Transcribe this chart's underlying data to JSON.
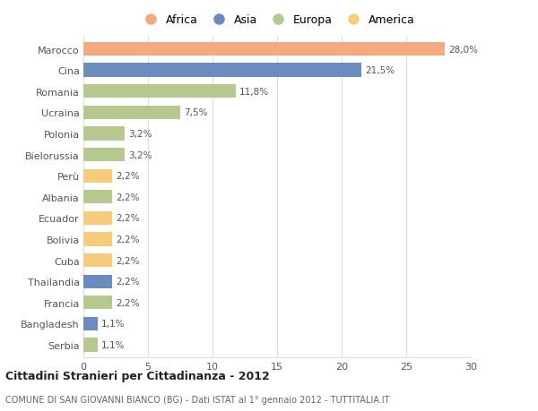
{
  "categories": [
    "Marocco",
    "Cina",
    "Romania",
    "Ucraina",
    "Polonia",
    "Bielorussia",
    "Perù",
    "Albania",
    "Ecuador",
    "Bolivia",
    "Cuba",
    "Thailandia",
    "Francia",
    "Bangladesh",
    "Serbia"
  ],
  "values": [
    28.0,
    21.5,
    11.8,
    7.5,
    3.2,
    3.2,
    2.2,
    2.2,
    2.2,
    2.2,
    2.2,
    2.2,
    2.2,
    1.1,
    1.1
  ],
  "labels": [
    "28,0%",
    "21,5%",
    "11,8%",
    "7,5%",
    "3,2%",
    "3,2%",
    "2,2%",
    "2,2%",
    "2,2%",
    "2,2%",
    "2,2%",
    "2,2%",
    "2,2%",
    "1,1%",
    "1,1%"
  ],
  "colors": [
    "#F4A97F",
    "#6B8CBE",
    "#B5C98E",
    "#B5C98E",
    "#B5C98E",
    "#B5C98E",
    "#F6CC7A",
    "#B5C98E",
    "#F6CC7A",
    "#F6CC7A",
    "#F6CC7A",
    "#6B8CBE",
    "#B5C98E",
    "#6B8CBE",
    "#B5C98E"
  ],
  "legend_labels": [
    "Africa",
    "Asia",
    "Europa",
    "America"
  ],
  "legend_colors": [
    "#F4A97F",
    "#6B8CBE",
    "#B5C98E",
    "#F6CC7A"
  ],
  "title": "Cittadini Stranieri per Cittadinanza - 2012",
  "subtitle": "COMUNE DI SAN GIOVANNI BIANCO (BG) - Dati ISTAT al 1° gennaio 2012 - TUTTITALIA.IT",
  "xlim": [
    0,
    30
  ],
  "xticks": [
    0,
    5,
    10,
    15,
    20,
    25,
    30
  ],
  "bg_color": "#ffffff",
  "grid_color": "#dddddd"
}
